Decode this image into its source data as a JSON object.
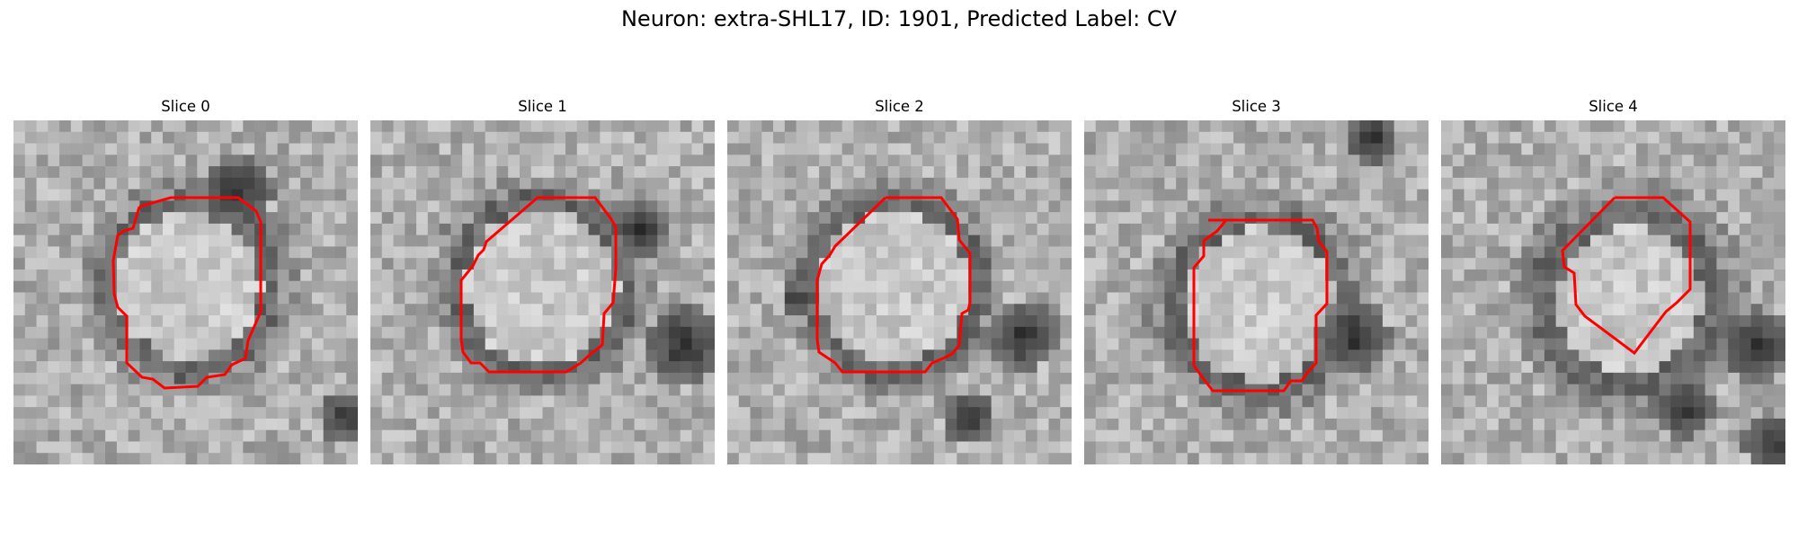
{
  "figure": {
    "title": "Neuron: extra-SHL17, ID: 1901, Predicted Label: CV",
    "contour_color": "#ff0000",
    "colormap": "grayscale",
    "panels": [
      {
        "title": "Slice 0",
        "image": "grayscale microscopy patch with red contour around a bright round cell"
      },
      {
        "title": "Slice 1",
        "image": "grayscale microscopy patch with red contour around a bright round cell"
      },
      {
        "title": "Slice 2",
        "image": "grayscale microscopy patch with red contour around a bright round cell"
      },
      {
        "title": "Slice 3",
        "image": "grayscale microscopy patch with red contour around a bright round cell"
      },
      {
        "title": "Slice 4",
        "image": "grayscale microscopy patch with red contour around a bright round cell"
      }
    ]
  }
}
